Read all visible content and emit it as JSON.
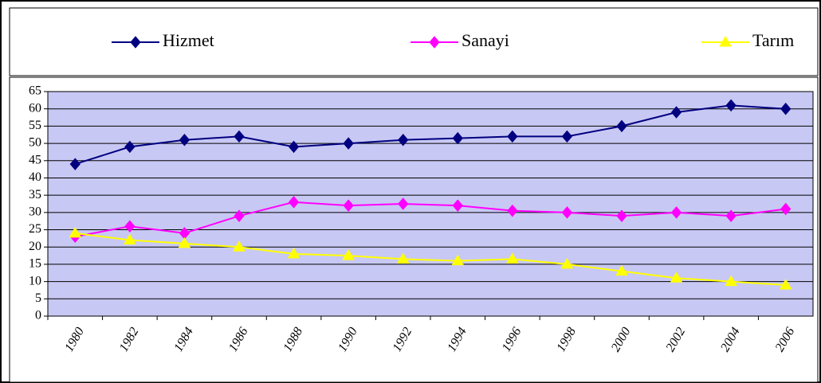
{
  "chart_data": {
    "type": "line",
    "categories": [
      "1980",
      "1982",
      "1984",
      "1986",
      "1988",
      "1990",
      "1992",
      "1994",
      "1996",
      "1998",
      "2000",
      "2002",
      "2004",
      "2006"
    ],
    "series": [
      {
        "name": "Hizmet",
        "color": "#000080",
        "marker": "diamond",
        "values": [
          44,
          49,
          51,
          52,
          49,
          50,
          51,
          51.5,
          52,
          52,
          55,
          59,
          61,
          60
        ]
      },
      {
        "name": "Sanayi",
        "color": "#ff00ff",
        "marker": "diamond",
        "values": [
          23,
          26,
          24,
          29,
          33,
          32,
          32.5,
          32,
          30.5,
          30,
          29,
          30,
          29,
          31
        ]
      },
      {
        "name": "Tarım",
        "color": "#ffff00",
        "marker": "triangle",
        "values": [
          24,
          22,
          21,
          20,
          18,
          17.5,
          16.5,
          16,
          16.5,
          15,
          13,
          11,
          10,
          9
        ]
      }
    ],
    "ylim": [
      0,
      65
    ],
    "yticks": [
      0,
      5,
      10,
      15,
      20,
      25,
      30,
      35,
      40,
      45,
      50,
      55,
      60,
      65
    ],
    "grid": true,
    "legend": "top"
  }
}
